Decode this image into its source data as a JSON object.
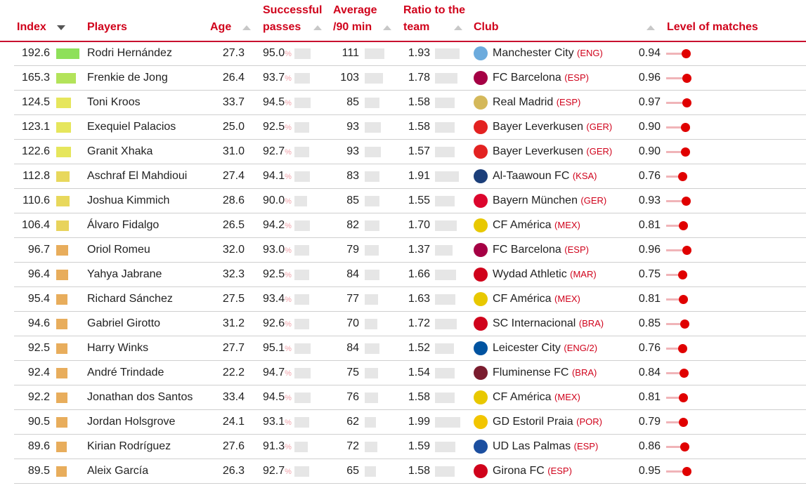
{
  "headers": {
    "index": "Index",
    "players": "Players",
    "age": "Age",
    "passes_1": "Successful",
    "passes_2": "passes",
    "avg_1": "Average",
    "avg_2": "/90 min",
    "ratio_1": "Ratio to the",
    "ratio_2": "team",
    "club": "Club",
    "level": "Level of matches"
  },
  "rows": [
    {
      "index": "192.6",
      "color": "#8ee05a",
      "player": "Rodri Hernández",
      "age": "27.3",
      "passes": "95.0",
      "avg": "111",
      "ratio": "1.93",
      "club": "Manchester City",
      "country": "(ENG)",
      "crest": "#6cabdd",
      "level": "0.94"
    },
    {
      "index": "165.3",
      "color": "#b3e35a",
      "player": "Frenkie de Jong",
      "age": "26.4",
      "passes": "93.7",
      "avg": "103",
      "ratio": "1.78",
      "club": "FC Barcelona",
      "country": "(ESP)",
      "crest": "#a50044",
      "level": "0.96"
    },
    {
      "index": "124.5",
      "color": "#e6e65c",
      "player": "Toni Kroos",
      "age": "33.7",
      "passes": "94.5",
      "avg": "85",
      "ratio": "1.58",
      "club": "Real Madrid",
      "country": "(ESP)",
      "crest": "#d4b85a",
      "level": "0.97"
    },
    {
      "index": "123.1",
      "color": "#e6e65c",
      "player": "Exequiel Palacios",
      "age": "25.0",
      "passes": "92.5",
      "avg": "93",
      "ratio": "1.58",
      "club": "Bayer Leverkusen",
      "country": "(GER)",
      "crest": "#e32221",
      "level": "0.90"
    },
    {
      "index": "122.6",
      "color": "#e6e65c",
      "player": "Granit Xhaka",
      "age": "31.0",
      "passes": "92.7",
      "avg": "93",
      "ratio": "1.57",
      "club": "Bayer Leverkusen",
      "country": "(GER)",
      "crest": "#e32221",
      "level": "0.90"
    },
    {
      "index": "112.8",
      "color": "#e8d85c",
      "player": "Aschraf El Mahdioui",
      "age": "27.4",
      "passes": "94.1",
      "avg": "83",
      "ratio": "1.91",
      "club": "Al-Taawoun FC",
      "country": "(KSA)",
      "crest": "#1c3f7a",
      "level": "0.76"
    },
    {
      "index": "110.6",
      "color": "#e8d85c",
      "player": "Joshua Kimmich",
      "age": "28.6",
      "passes": "90.0",
      "avg": "85",
      "ratio": "1.55",
      "club": "Bayern München",
      "country": "(GER)",
      "crest": "#dc052d",
      "level": "0.93"
    },
    {
      "index": "106.4",
      "color": "#e8d35c",
      "player": "Álvaro Fidalgo",
      "age": "26.5",
      "passes": "94.2",
      "avg": "82",
      "ratio": "1.70",
      "club": "CF América",
      "country": "(MEX)",
      "crest": "#e8c800",
      "level": "0.81"
    },
    {
      "index": "96.7",
      "color": "#e8ad5c",
      "player": "Oriol Romeu",
      "age": "32.0",
      "passes": "93.0",
      "avg": "79",
      "ratio": "1.37",
      "club": "FC Barcelona",
      "country": "(ESP)",
      "crest": "#a50044",
      "level": "0.96"
    },
    {
      "index": "96.4",
      "color": "#e8ad5c",
      "player": "Yahya Jabrane",
      "age": "32.3",
      "passes": "92.5",
      "avg": "84",
      "ratio": "1.66",
      "club": "Wydad Athletic",
      "country": "(MAR)",
      "crest": "#d0021b",
      "level": "0.75"
    },
    {
      "index": "95.4",
      "color": "#e8ad5c",
      "player": "Richard Sánchez",
      "age": "27.5",
      "passes": "93.4",
      "avg": "77",
      "ratio": "1.63",
      "club": "CF América",
      "country": "(MEX)",
      "crest": "#e8c800",
      "level": "0.81"
    },
    {
      "index": "94.6",
      "color": "#e8ad5c",
      "player": "Gabriel Girotto",
      "age": "31.2",
      "passes": "92.6",
      "avg": "70",
      "ratio": "1.72",
      "club": "SC Internacional",
      "country": "(BRA)",
      "crest": "#d0021b",
      "level": "0.85"
    },
    {
      "index": "92.5",
      "color": "#e8ad5c",
      "player": "Harry Winks",
      "age": "27.7",
      "passes": "95.1",
      "avg": "84",
      "ratio": "1.52",
      "club": "Leicester City",
      "country": "(ENG/2)",
      "crest": "#0053a0",
      "level": "0.76"
    },
    {
      "index": "92.4",
      "color": "#e8ad5c",
      "player": "André Trindade",
      "age": "22.2",
      "passes": "94.7",
      "avg": "75",
      "ratio": "1.54",
      "club": "Fluminense FC",
      "country": "(BRA)",
      "crest": "#7a1c2e",
      "level": "0.84"
    },
    {
      "index": "92.2",
      "color": "#e8ad5c",
      "player": "Jonathan dos Santos",
      "age": "33.4",
      "passes": "94.5",
      "avg": "76",
      "ratio": "1.58",
      "club": "CF América",
      "country": "(MEX)",
      "crest": "#e8c800",
      "level": "0.81"
    },
    {
      "index": "90.5",
      "color": "#e8ad5c",
      "player": "Jordan Holsgrove",
      "age": "24.1",
      "passes": "93.1",
      "avg": "62",
      "ratio": "1.99",
      "club": "GD Estoril Praia",
      "country": "(POR)",
      "crest": "#f2c500",
      "level": "0.79"
    },
    {
      "index": "89.6",
      "color": "#e8ad5c",
      "player": "Kirian Rodríguez",
      "age": "27.6",
      "passes": "91.3",
      "avg": "72",
      "ratio": "1.59",
      "club": "UD Las Palmas",
      "country": "(ESP)",
      "crest": "#1c4fa0",
      "level": "0.86"
    },
    {
      "index": "89.5",
      "color": "#e8ad5c",
      "player": "Aleix García",
      "age": "26.3",
      "passes": "92.7",
      "avg": "65",
      "ratio": "1.58",
      "club": "Girona FC",
      "country": "(ESP)",
      "crest": "#d0021b",
      "level": "0.95"
    }
  ]
}
